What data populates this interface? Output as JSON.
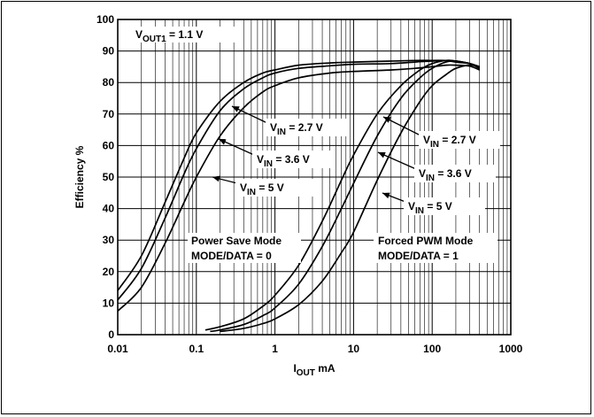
{
  "chart_data": {
    "type": "line",
    "xscale": "log",
    "xlim": [
      0.01,
      1000
    ],
    "ylim": [
      0,
      100
    ],
    "grid": true,
    "xlabel": {
      "main": "I",
      "sub": "OUT",
      "tail": " mA"
    },
    "ylabel": "Efficiency %",
    "x_ticks": [
      "0.01",
      "0.1",
      "1",
      "10",
      "100",
      "1000"
    ],
    "y_ticks": [
      "0",
      "10",
      "20",
      "30",
      "40",
      "50",
      "60",
      "70",
      "80",
      "90",
      "100"
    ],
    "annotations": {
      "vout": {
        "main": "V",
        "sub": "OUT1",
        "tail": " = 1.1 V"
      },
      "ps_mode": [
        "Power Save Mode",
        "MODE/DATA = 0"
      ],
      "pwm_mode": [
        "Forced PWM Mode",
        "MODE/DATA = 1"
      ],
      "ps_labels": [
        {
          "main": "V",
          "sub": "IN",
          "tail": " = 2.7 V"
        },
        {
          "main": "V",
          "sub": "IN",
          "tail": " = 3.6 V"
        },
        {
          "main": "V",
          "sub": "IN",
          "tail": " = 5 V"
        }
      ],
      "pwm_labels": [
        {
          "main": "V",
          "sub": "IN",
          "tail": " = 2.7 V"
        },
        {
          "main": "V",
          "sub": "IN",
          "tail": " = 3.6 V"
        },
        {
          "main": "V",
          "sub": "IN",
          "tail": " = 5 V"
        }
      ]
    },
    "series": [
      {
        "mode": "power-save",
        "vin": "2.7 V",
        "x": [
          0.01,
          0.02,
          0.04,
          0.07,
          0.1,
          0.2,
          0.4,
          0.7,
          1,
          2,
          5,
          10,
          30,
          60,
          100,
          150,
          200,
          300,
          400
        ],
        "y": [
          14,
          25,
          42,
          56,
          64,
          74,
          80,
          83,
          84,
          85.5,
          86.2,
          86.5,
          86.8,
          87,
          87,
          87,
          86.5,
          86,
          85
        ]
      },
      {
        "mode": "power-save",
        "vin": "3.6 V",
        "x": [
          0.01,
          0.02,
          0.04,
          0.07,
          0.1,
          0.2,
          0.4,
          0.7,
          1,
          2,
          5,
          10,
          30,
          60,
          100,
          150,
          200,
          300,
          400
        ],
        "y": [
          11,
          21,
          37,
          51,
          59,
          71,
          78,
          81.5,
          83,
          84.5,
          85.3,
          85.8,
          86,
          86.5,
          86.8,
          87,
          86.8,
          86,
          84.5
        ]
      },
      {
        "mode": "power-save",
        "vin": "5 V",
        "x": [
          0.01,
          0.02,
          0.04,
          0.07,
          0.1,
          0.2,
          0.4,
          0.7,
          1,
          2,
          5,
          10,
          30,
          60,
          100,
          150,
          200,
          300,
          400
        ],
        "y": [
          7.5,
          15,
          29,
          42,
          50,
          63,
          72,
          77,
          79,
          81.5,
          83,
          83.5,
          84,
          84.5,
          85,
          85.5,
          85.5,
          85.2,
          84
        ]
      },
      {
        "mode": "forced-pwm",
        "vin": "2.7 V",
        "x": [
          0.13,
          0.2,
          0.4,
          0.7,
          1,
          2,
          4,
          7,
          10,
          20,
          40,
          70,
          100,
          150,
          200,
          300,
          400
        ],
        "y": [
          1.5,
          2.5,
          5,
          9,
          12.5,
          22,
          36,
          49,
          57,
          70,
          79,
          84,
          86,
          87,
          86.8,
          86,
          84.5
        ]
      },
      {
        "mode": "forced-pwm",
        "vin": "3.6 V",
        "x": [
          0.15,
          0.2,
          0.4,
          0.7,
          1,
          2,
          4,
          7,
          10,
          20,
          40,
          70,
          100,
          150,
          200,
          300,
          400
        ],
        "y": [
          1,
          1.5,
          3.2,
          6,
          8.5,
          16,
          28,
          40,
          48,
          63,
          75,
          81.5,
          84.5,
          86.5,
          86.8,
          86,
          85
        ]
      },
      {
        "mode": "forced-pwm",
        "vin": "5 V",
        "x": [
          0.2,
          0.4,
          0.7,
          1,
          2,
          4,
          7,
          10,
          20,
          40,
          70,
          100,
          150,
          200,
          300,
          400
        ],
        "y": [
          1,
          2,
          3.5,
          5,
          9.5,
          17,
          26,
          32.5,
          49,
          64,
          74,
          79,
          82.5,
          84.5,
          85.5,
          85
        ]
      }
    ]
  }
}
